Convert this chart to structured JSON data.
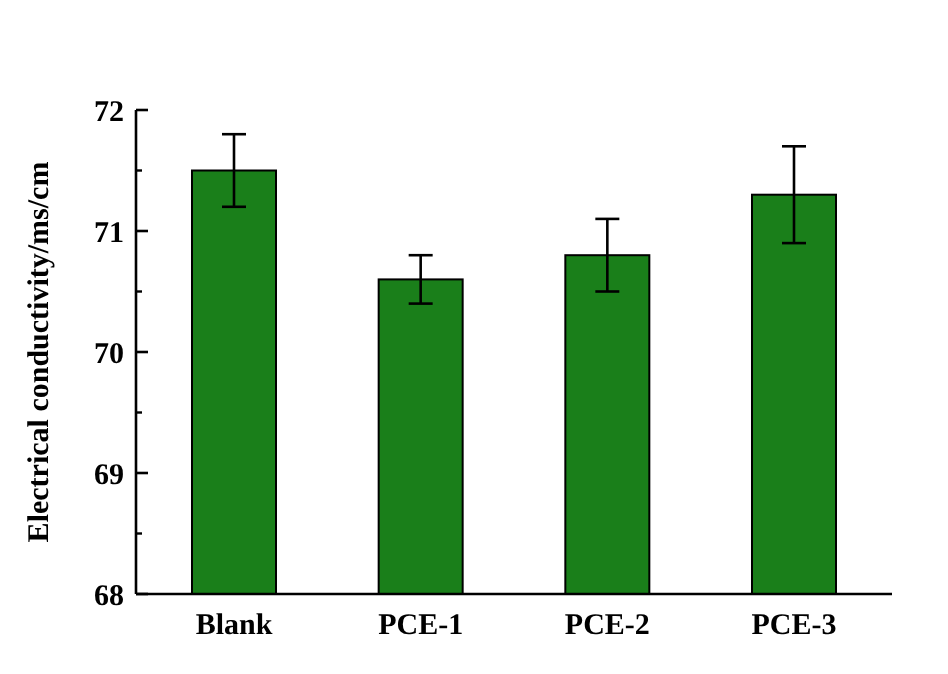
{
  "chart_data": {
    "type": "bar",
    "ylabel": "Electrical conductivity/ms/cm",
    "categories": [
      "Blank",
      "PCE-1",
      "PCE-2",
      "PCE-3"
    ],
    "values": [
      71.5,
      70.6,
      70.8,
      71.3
    ],
    "errors": [
      0.3,
      0.2,
      0.3,
      0.4
    ],
    "color": "#1a7f1a",
    "ylim": [
      68,
      72
    ],
    "yticks": [
      68,
      69,
      70,
      71,
      72
    ]
  }
}
